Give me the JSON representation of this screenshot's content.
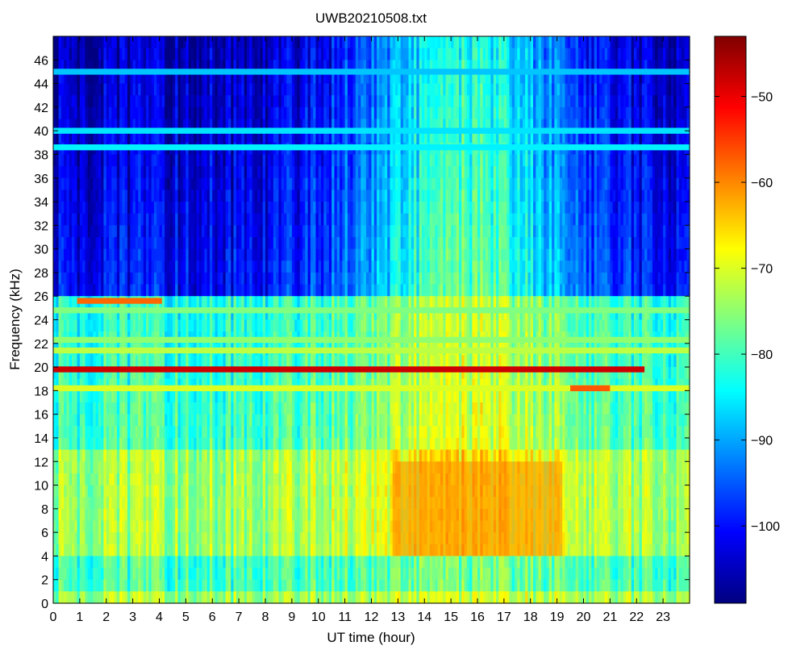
{
  "chart_data": {
    "type": "heatmap",
    "title": "UWB20210508.txt",
    "xlabel": "UT time (hour)",
    "ylabel": "Frequency (kHz)",
    "xlim": [
      0,
      24
    ],
    "ylim": [
      0,
      48
    ],
    "x_ticks": [
      "0",
      "1",
      "2",
      "3",
      "4",
      "5",
      "6",
      "7",
      "8",
      "9",
      "10",
      "11",
      "12",
      "13",
      "14",
      "15",
      "16",
      "17",
      "18",
      "19",
      "20",
      "21",
      "22",
      "23"
    ],
    "y_ticks": [
      "0",
      "2",
      "4",
      "6",
      "8",
      "10",
      "12",
      "14",
      "16",
      "18",
      "20",
      "22",
      "24",
      "26",
      "28",
      "30",
      "32",
      "34",
      "36",
      "38",
      "40",
      "42",
      "44",
      "46"
    ],
    "colorbar": {
      "range": [
        -109,
        -43
      ],
      "ticks": [
        "-50",
        "-60",
        "-70",
        "-80",
        "-90",
        "-100"
      ],
      "colormap": "jet"
    },
    "features": [
      {
        "kind": "band",
        "freq_khz": 19.8,
        "t_start": 0,
        "t_end": 22.3,
        "level_db": -48
      },
      {
        "kind": "band",
        "freq_khz": 18.2,
        "t_start": 0,
        "t_end": 24,
        "level_db": -70
      },
      {
        "kind": "band",
        "freq_khz": 18.2,
        "t_start": 19.5,
        "t_end": 21.0,
        "level_db": -57
      },
      {
        "kind": "band",
        "freq_khz": 21.4,
        "t_start": 0,
        "t_end": 24,
        "level_db": -72
      },
      {
        "kind": "band",
        "freq_khz": 22.3,
        "t_start": 0,
        "t_end": 24,
        "level_db": -75
      },
      {
        "kind": "band",
        "freq_khz": 24.8,
        "t_start": 0,
        "t_end": 24,
        "level_db": -76
      },
      {
        "kind": "band",
        "freq_khz": 25.6,
        "t_start": 0.9,
        "t_end": 4.1,
        "level_db": -58
      },
      {
        "kind": "band",
        "freq_khz": 38.6,
        "t_start": 0,
        "t_end": 24,
        "level_db": -85
      },
      {
        "kind": "band",
        "freq_khz": 40.0,
        "t_start": 0,
        "t_end": 24,
        "level_db": -86
      },
      {
        "kind": "band",
        "freq_khz": 45.0,
        "t_start": 0,
        "t_end": 24,
        "level_db": -88
      },
      {
        "kind": "region",
        "freq_range": [
          4,
          12
        ],
        "t_range": [
          12.8,
          19.2
        ],
        "level_db": -60
      }
    ]
  }
}
